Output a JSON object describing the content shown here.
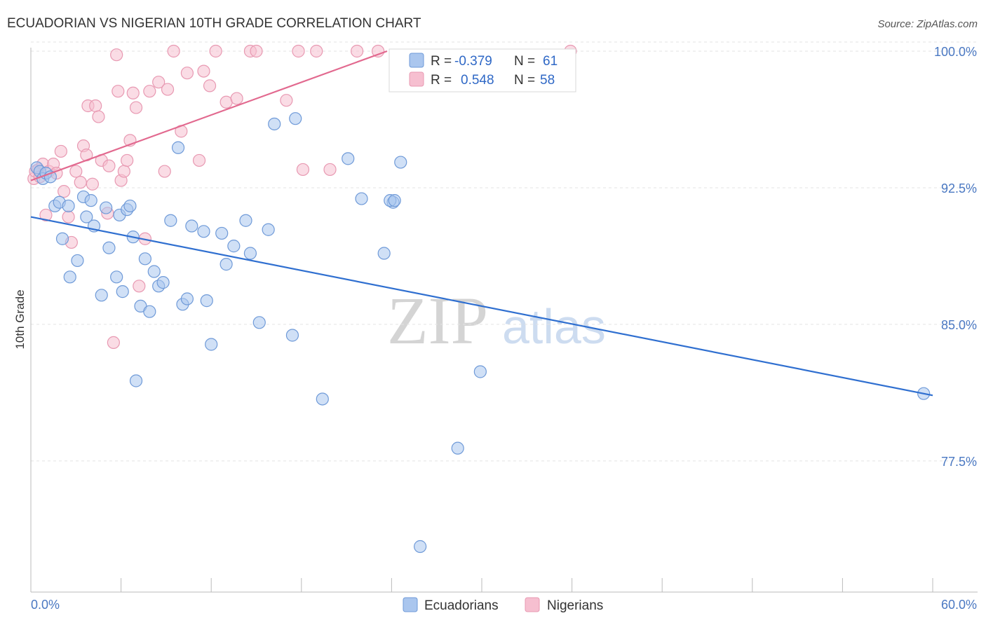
{
  "title": "ECUADORIAN VS NIGERIAN 10TH GRADE CORRELATION CHART",
  "source": "Source: ZipAtlas.com",
  "watermark": {
    "zip": "ZIP",
    "atlas": "atlas"
  },
  "colors": {
    "blue_fill": "#aac6ee",
    "blue_stroke": "#6f9ad8",
    "blue_line": "#2f6fd0",
    "pink_fill": "#f6bfd0",
    "pink_stroke": "#e899b2",
    "pink_line": "#e2698f",
    "tick_text": "#4a78c2",
    "grid": "#e3e3e3"
  },
  "legend_box": {
    "rows": [
      {
        "r_label": "R =",
        "r_value": "-0.379",
        "n_label": "N =",
        "n_value": "61",
        "series": "Ecuadorians"
      },
      {
        "r_label": "R =",
        "r_value": "0.548",
        "n_label": "N =",
        "n_value": "58",
        "series": "Nigerians"
      }
    ]
  },
  "bottom_legend": [
    "Ecuadorians",
    "Nigerians"
  ],
  "chart_data": {
    "type": "scatter",
    "title": "ECUADORIAN VS NIGERIAN 10TH GRADE CORRELATION CHART",
    "xlabel": "",
    "ylabel": "10th Grade",
    "xlim": [
      0,
      60
    ],
    "ylim": [
      70.3,
      100.5
    ],
    "x_tick_labels": [
      "0.0%",
      "60.0%"
    ],
    "y_ticks": [
      77.5,
      85.0,
      92.5,
      100.0
    ],
    "y_tick_labels": [
      "77.5%",
      "85.0%",
      "92.5%",
      "100.0%"
    ],
    "grid": true,
    "legend_placement": "top-center",
    "series": [
      {
        "name": "Ecuadorians",
        "color": "#aac6ee",
        "trend": {
          "x": [
            0,
            60
          ],
          "y": [
            90.9,
            81.1
          ]
        },
        "x": [
          0.4,
          0.6,
          0.8,
          1.0,
          1.3,
          1.6,
          1.9,
          2.1,
          2.5,
          2.6,
          3.1,
          3.5,
          3.7,
          4.0,
          4.2,
          4.7,
          5.0,
          5.2,
          5.7,
          5.9,
          6.1,
          6.4,
          6.6,
          6.8,
          7.0,
          7.3,
          7.6,
          7.9,
          8.2,
          8.5,
          8.8,
          9.3,
          9.8,
          10.1,
          10.4,
          10.7,
          11.5,
          11.7,
          12.0,
          12.7,
          13.0,
          13.5,
          14.3,
          14.6,
          15.2,
          15.8,
          16.2,
          17.4,
          17.6,
          19.4,
          21.1,
          22.0,
          23.5,
          24.1,
          24.6,
          25.9,
          28.4,
          29.9,
          23.9,
          24.2,
          59.4
        ],
        "y": [
          93.6,
          93.4,
          93.0,
          93.3,
          93.1,
          91.5,
          91.7,
          89.7,
          91.5,
          87.6,
          88.5,
          92.0,
          90.9,
          91.8,
          90.4,
          86.6,
          91.4,
          89.2,
          87.6,
          91.0,
          86.8,
          91.3,
          91.5,
          89.8,
          81.9,
          86.0,
          88.6,
          85.7,
          87.9,
          87.1,
          87.3,
          90.7,
          94.7,
          86.1,
          86.4,
          90.4,
          90.1,
          86.3,
          83.9,
          90.0,
          88.3,
          89.3,
          90.7,
          88.9,
          85.1,
          90.2,
          96.0,
          84.4,
          96.3,
          80.9,
          94.1,
          91.9,
          88.9,
          91.7,
          93.9,
          72.8,
          78.2,
          82.4,
          91.8,
          91.8,
          81.2
        ]
      },
      {
        "name": "Nigerians",
        "color": "#f6bfd0",
        "trend": {
          "x": [
            0,
            23.7
          ],
          "y": [
            92.9,
            100.0
          ]
        },
        "x": [
          0.2,
          0.3,
          0.5,
          0.6,
          0.8,
          1.0,
          1.2,
          1.5,
          1.7,
          2.0,
          2.2,
          2.5,
          2.7,
          3.0,
          3.3,
          3.5,
          3.7,
          3.8,
          4.1,
          4.3,
          4.5,
          4.7,
          5.1,
          5.2,
          5.5,
          5.7,
          5.8,
          6.0,
          6.2,
          6.4,
          6.6,
          6.8,
          7.0,
          7.2,
          7.6,
          7.9,
          8.5,
          8.9,
          9.1,
          9.5,
          10.0,
          10.4,
          11.2,
          11.5,
          11.9,
          12.3,
          13.0,
          13.7,
          14.6,
          15.0,
          17.0,
          17.8,
          18.1,
          19.0,
          19.9,
          21.7,
          23.1,
          35.9
        ],
        "y": [
          93.0,
          93.4,
          93.5,
          93.1,
          93.8,
          91.0,
          93.4,
          93.8,
          93.3,
          94.5,
          92.3,
          90.9,
          89.5,
          93.4,
          92.8,
          94.8,
          94.3,
          97.0,
          92.7,
          97.0,
          96.4,
          94.0,
          91.1,
          93.7,
          84.0,
          99.8,
          97.8,
          92.9,
          93.4,
          94.0,
          95.1,
          97.7,
          96.9,
          87.1,
          89.7,
          97.8,
          98.3,
          93.4,
          97.9,
          100.0,
          95.6,
          98.8,
          94.0,
          98.9,
          98.1,
          100.0,
          97.2,
          97.4,
          100.0,
          100.0,
          97.3,
          100.0,
          93.5,
          100.0,
          93.5,
          100.0,
          100.0,
          100.0
        ]
      }
    ]
  }
}
